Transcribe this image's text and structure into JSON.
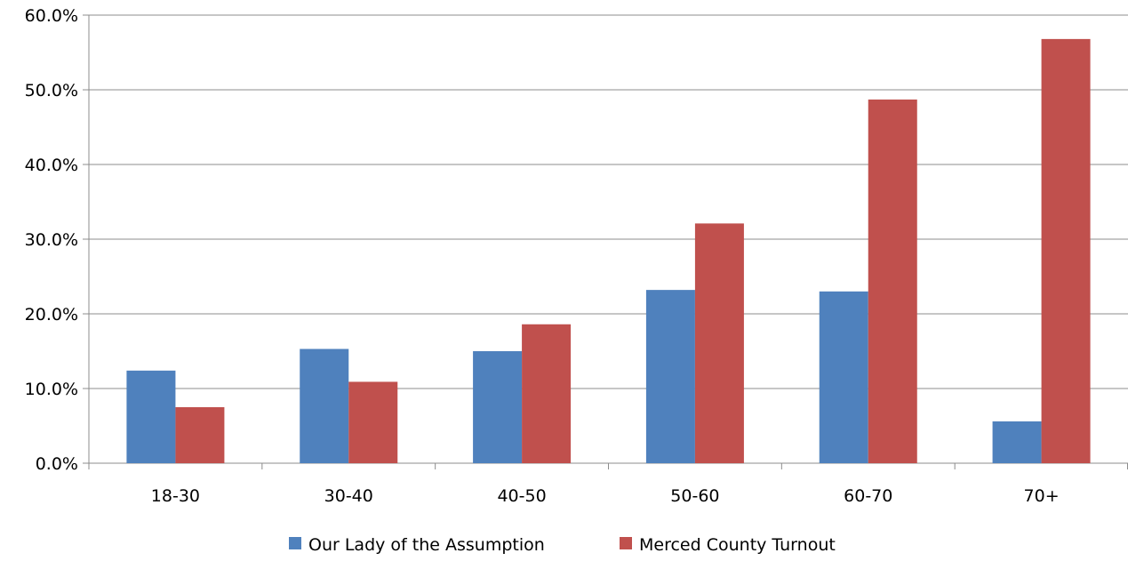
{
  "chart_data": {
    "type": "bar",
    "title": "",
    "xlabel": "",
    "ylabel": "",
    "categories": [
      "18-30",
      "30-40",
      "40-50",
      "50-60",
      "60-70",
      "70+"
    ],
    "series": [
      {
        "name": "Our Lady of the Assumption",
        "color": "#4F81BD",
        "values": [
          12.4,
          15.3,
          15.0,
          23.2,
          23.0,
          5.6
        ]
      },
      {
        "name": "Merced County Turnout",
        "color": "#C0504D",
        "values": [
          7.5,
          10.9,
          18.6,
          32.1,
          48.7,
          56.8
        ]
      }
    ],
    "ylim": [
      0,
      60
    ],
    "yticks": [
      0,
      10,
      20,
      30,
      40,
      50,
      60
    ],
    "ytick_labels": [
      "0.0%",
      "10.0%",
      "20.0%",
      "30.0%",
      "40.0%",
      "50.0%",
      "60.0%"
    ],
    "grid": true,
    "legend_position": "bottom"
  }
}
